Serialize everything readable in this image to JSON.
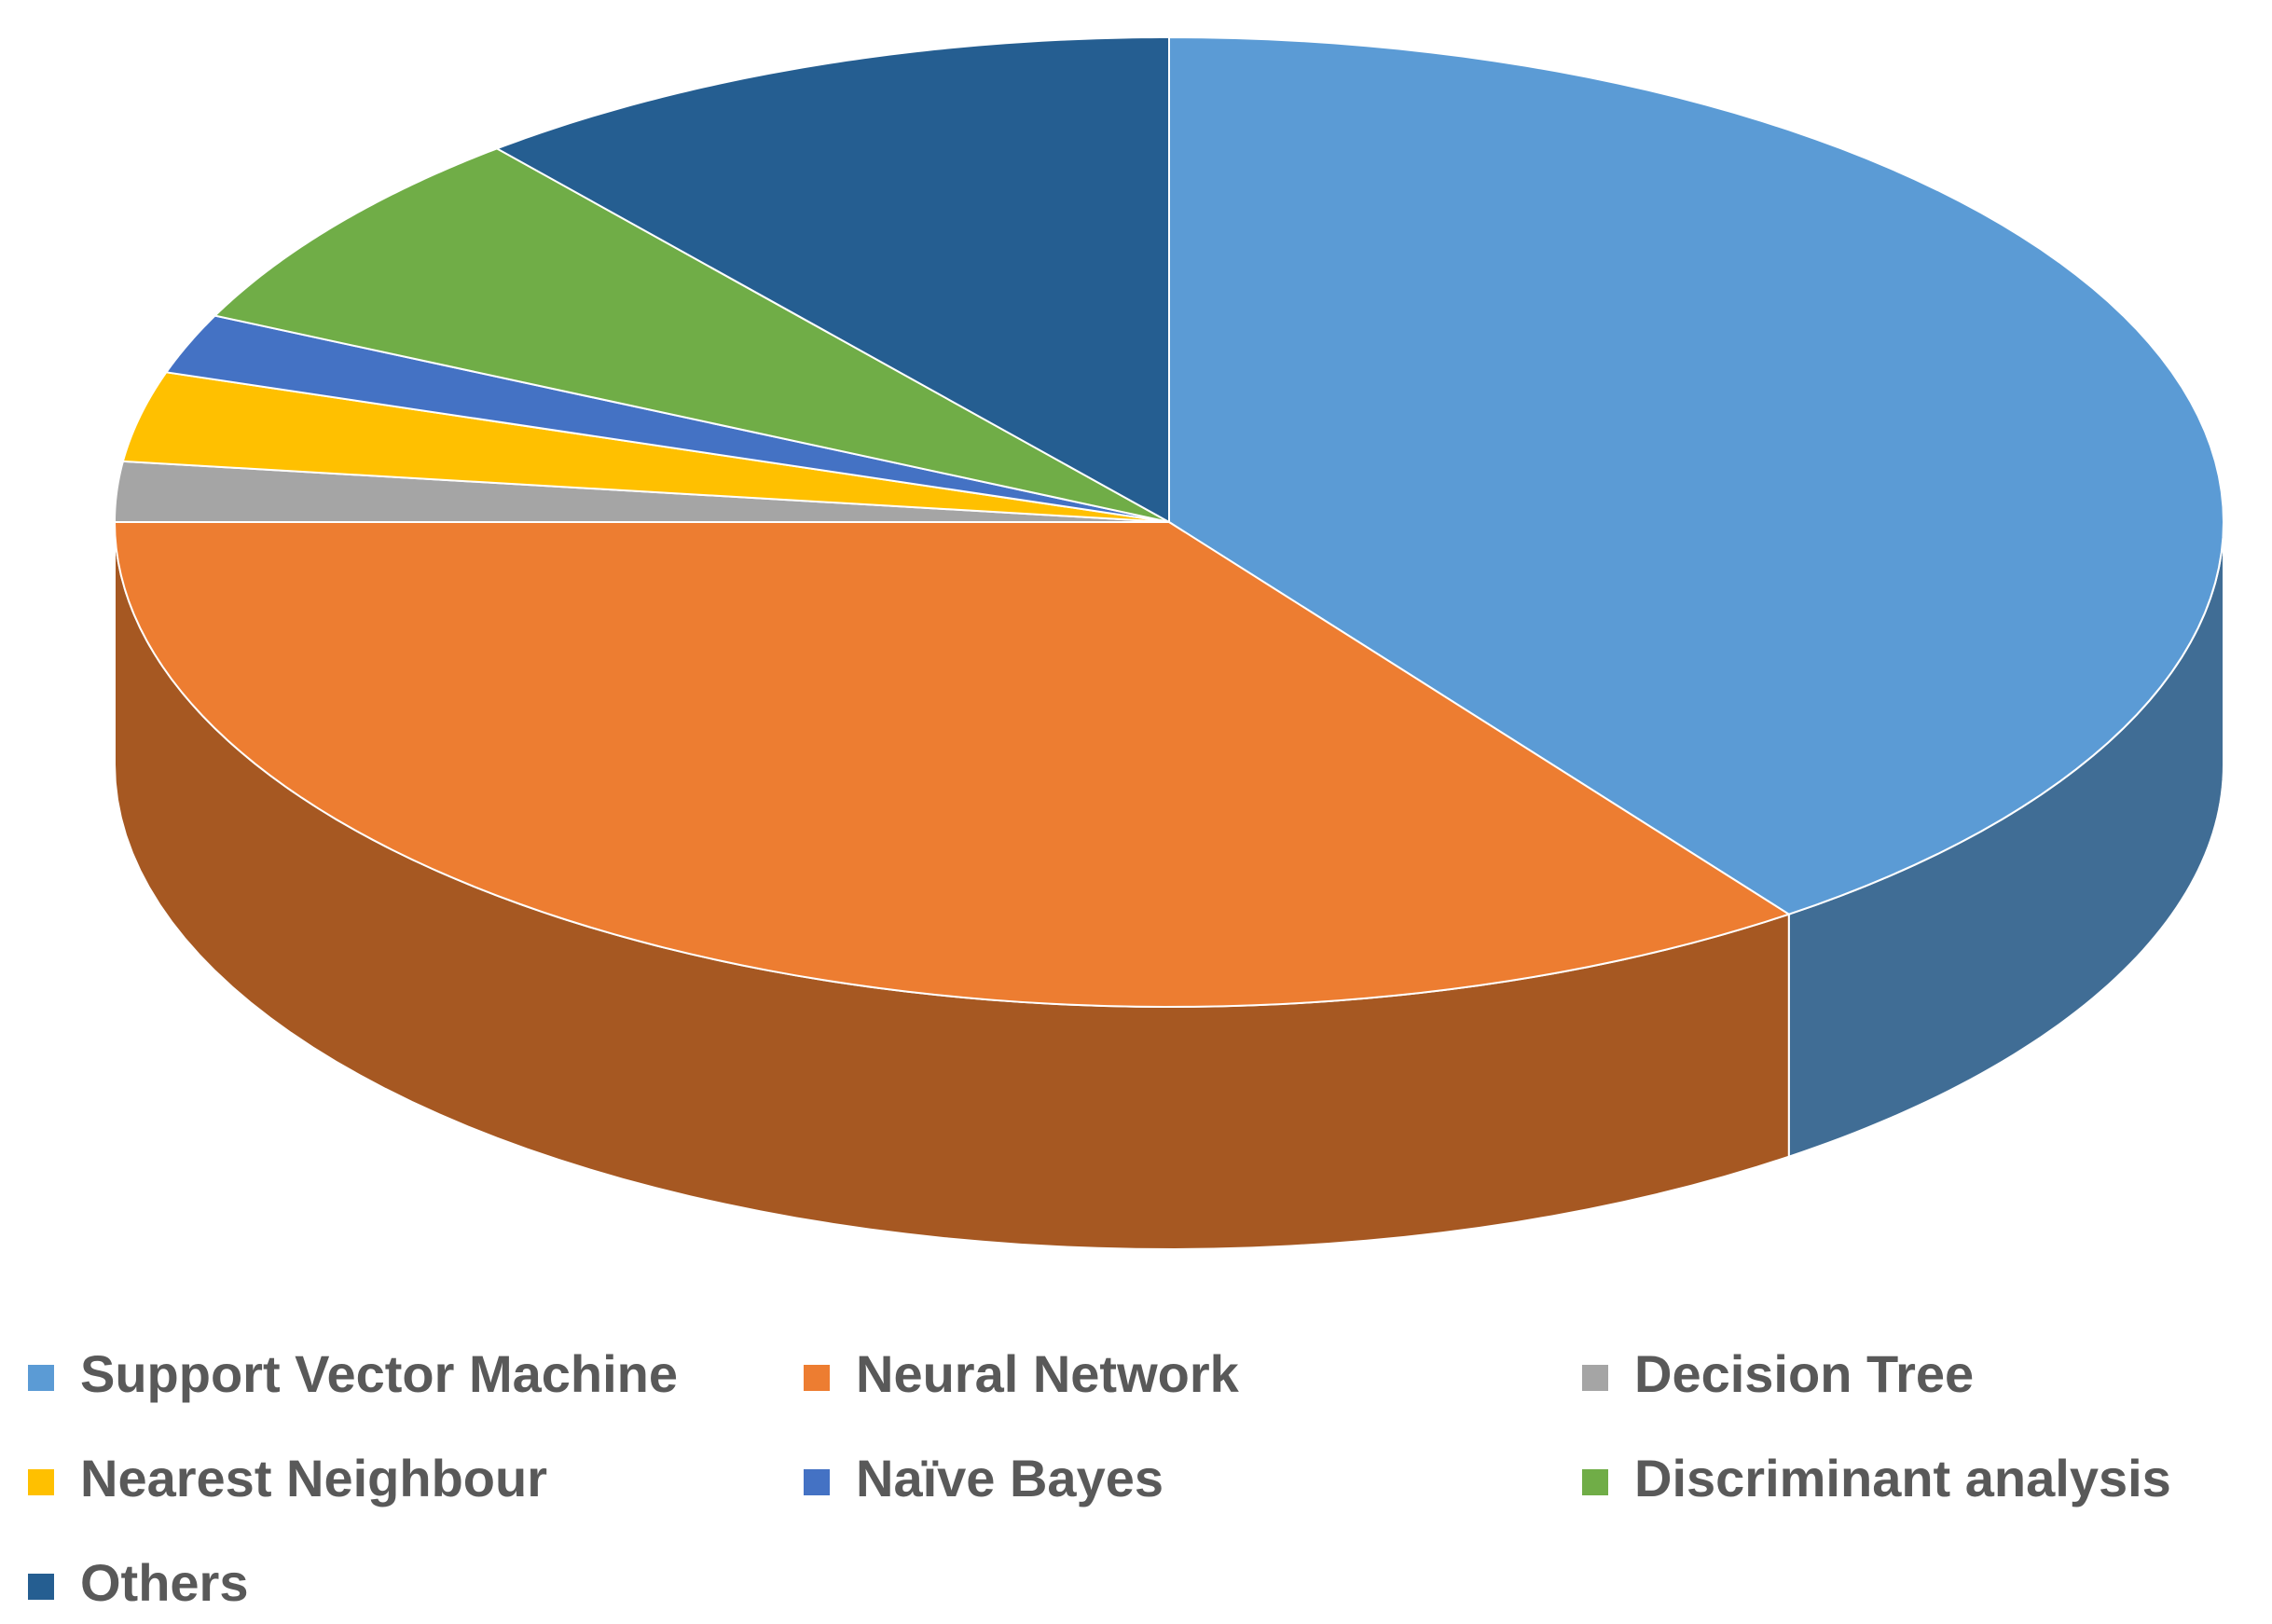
{
  "chart_data": {
    "type": "pie",
    "categories": [
      "Support Vector Machine",
      "Neural Network",
      "Decision Tree",
      "Nearest Neighbour",
      "Naïve Bayes",
      "Discriminant analysis",
      "Others"
    ],
    "values": [
      40,
      35,
      2,
      3,
      2,
      7,
      11
    ],
    "colors": [
      "#5b9bd5",
      "#ed7d31",
      "#a5a5a5",
      "#ffc000",
      "#4472c4",
      "#70ad47",
      "#255e91"
    ],
    "legend": "bottom"
  }
}
